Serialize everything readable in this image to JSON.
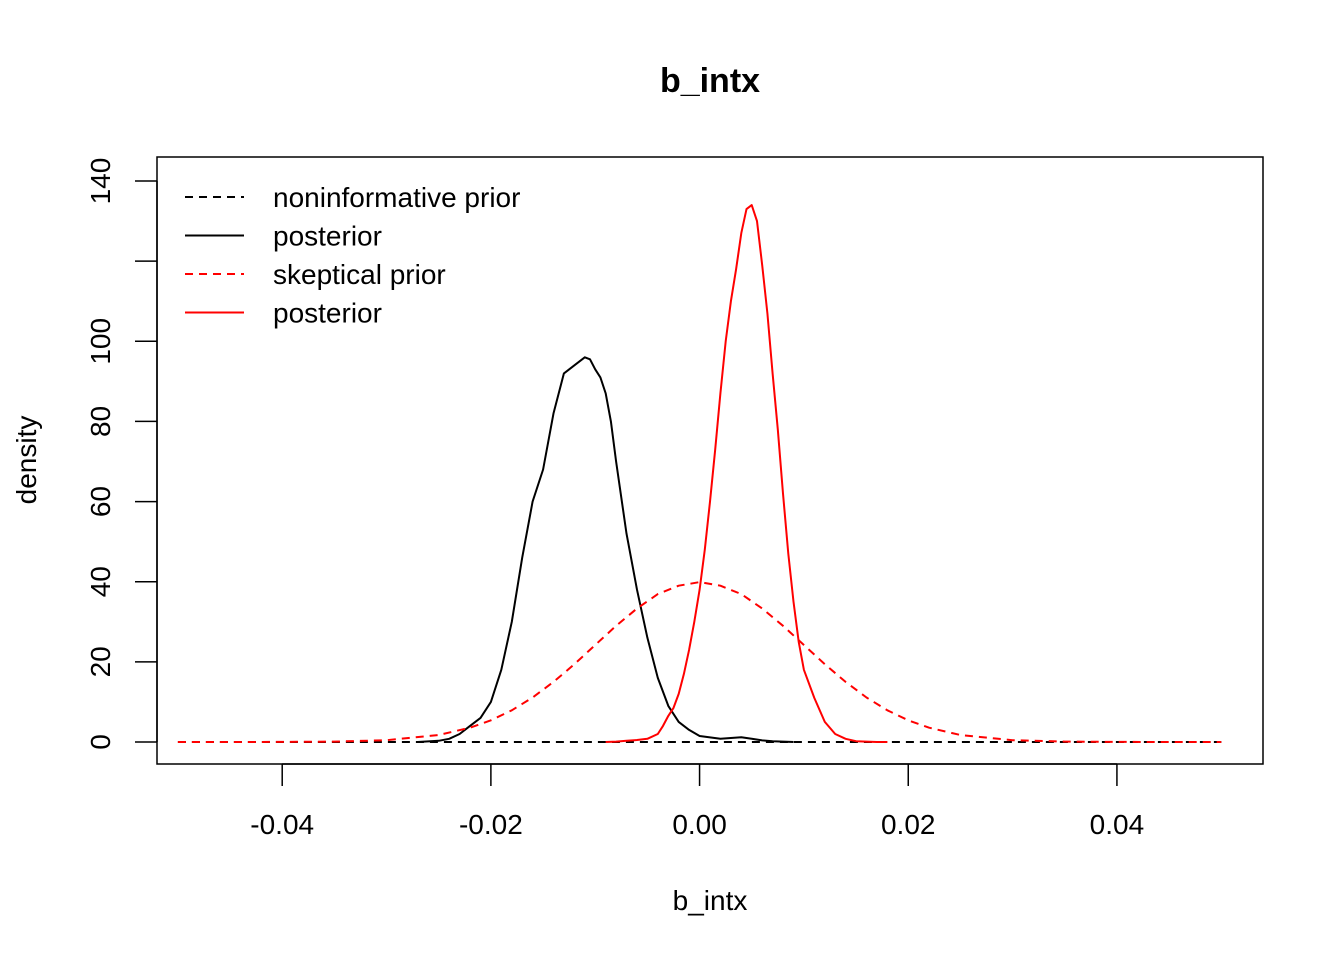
{
  "chart_data": {
    "type": "line",
    "title": "b_intx",
    "xlabel": "b_intx",
    "ylabel": "density",
    "xlim": [
      -0.052,
      0.054
    ],
    "ylim": [
      -5.5,
      146
    ],
    "x_ticks": [
      -0.04,
      -0.02,
      0.0,
      0.02,
      0.04
    ],
    "x_tick_labels": [
      "-0.04",
      "-0.02",
      "0.00",
      "0.02",
      "0.04"
    ],
    "y_ticks": [
      0,
      20,
      40,
      60,
      80,
      100,
      120,
      140
    ],
    "y_tick_labels": [
      "0",
      "20",
      "40",
      "60",
      "80",
      "100",
      "",
      "140"
    ],
    "grid": false,
    "legend_position": "top-left",
    "series": [
      {
        "name": "noninformative prior",
        "color": "#000000",
        "dash": "dashed",
        "x": [
          -0.05,
          0.05
        ],
        "y": [
          0.0,
          0.0
        ]
      },
      {
        "name": "posterior",
        "color": "#000000",
        "dash": "solid",
        "x": [
          -0.027,
          -0.025,
          -0.024,
          -0.023,
          -0.022,
          -0.021,
          -0.02,
          -0.019,
          -0.018,
          -0.017,
          -0.016,
          -0.015,
          -0.014,
          -0.013,
          -0.012,
          -0.0115,
          -0.011,
          -0.0105,
          -0.01,
          -0.0095,
          -0.009,
          -0.0085,
          -0.008,
          -0.007,
          -0.006,
          -0.005,
          -0.004,
          -0.003,
          -0.002,
          -0.001,
          0.0,
          0.002,
          0.004,
          0.005,
          0.006,
          0.007,
          0.008,
          0.009
        ],
        "y": [
          0.0,
          0.3,
          0.8,
          2.0,
          4.0,
          6.0,
          10.0,
          18.0,
          30.0,
          46.0,
          60.0,
          68.0,
          82.0,
          92.0,
          94.0,
          95.0,
          96.0,
          95.5,
          93.0,
          91.0,
          87.0,
          80.0,
          70.0,
          52.0,
          38.0,
          26.0,
          16.0,
          9.0,
          5.0,
          3.0,
          1.5,
          0.8,
          1.2,
          0.8,
          0.4,
          0.2,
          0.1,
          0.0
        ]
      },
      {
        "name": "skeptical prior",
        "color": "#ff0000",
        "dash": "dashed",
        "x": [
          -0.05,
          -0.045,
          -0.04,
          -0.035,
          -0.03,
          -0.025,
          -0.022,
          -0.02,
          -0.018,
          -0.016,
          -0.014,
          -0.012,
          -0.01,
          -0.008,
          -0.006,
          -0.004,
          -0.002,
          0.0,
          0.002,
          0.004,
          0.006,
          0.008,
          0.01,
          0.012,
          0.014,
          0.016,
          0.018,
          0.02,
          0.022,
          0.025,
          0.03,
          0.035,
          0.04,
          0.045,
          0.05
        ],
        "y": [
          0.0,
          0.0,
          0.01,
          0.09,
          0.44,
          1.75,
          3.55,
          5.4,
          7.9,
          11.1,
          15.0,
          19.4,
          24.2,
          29.0,
          33.3,
          36.9,
          39.0,
          39.9,
          39.0,
          36.9,
          33.3,
          29.0,
          24.2,
          19.4,
          15.0,
          11.1,
          7.9,
          5.4,
          3.55,
          1.75,
          0.44,
          0.09,
          0.01,
          0.0,
          0.0
        ]
      },
      {
        "name": "posterior",
        "color": "#ff0000",
        "dash": "solid",
        "x": [
          -0.009,
          -0.008,
          -0.007,
          -0.006,
          -0.005,
          -0.004,
          -0.0035,
          -0.003,
          -0.0025,
          -0.002,
          -0.0015,
          -0.001,
          -0.0005,
          0.0,
          0.0005,
          0.001,
          0.0015,
          0.002,
          0.0025,
          0.003,
          0.0035,
          0.004,
          0.0045,
          0.005,
          0.0055,
          0.006,
          0.0065,
          0.007,
          0.0075,
          0.008,
          0.0085,
          0.009,
          0.0095,
          0.01,
          0.011,
          0.012,
          0.013,
          0.014,
          0.015,
          0.016,
          0.017,
          0.018
        ],
        "y": [
          0.0,
          0.1,
          0.3,
          0.5,
          0.8,
          2.0,
          4.0,
          6.5,
          8.5,
          12.0,
          17.0,
          23.0,
          30.0,
          38.0,
          48.0,
          60.0,
          73.0,
          87.0,
          100.0,
          110.0,
          118.0,
          127.0,
          133.0,
          134.0,
          130.0,
          119.0,
          107.0,
          92.0,
          78.0,
          62.0,
          47.0,
          35.0,
          25.0,
          18.0,
          11.0,
          5.0,
          2.0,
          0.8,
          0.2,
          0.1,
          0.0,
          0.0
        ]
      }
    ]
  }
}
